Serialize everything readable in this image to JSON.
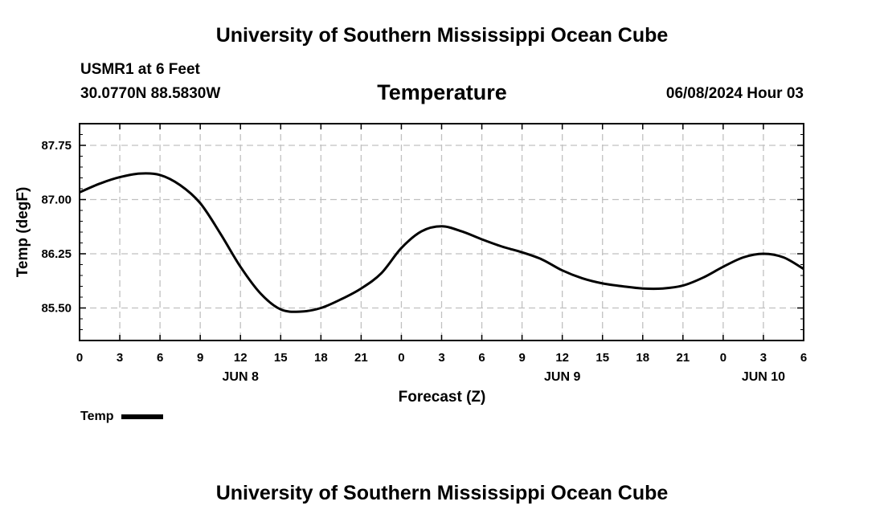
{
  "header": {
    "title": "University of Southern Mississippi Ocean Cube",
    "station": "USMR1 at 6 Feet",
    "coords": "30.0770N  88.5830W",
    "timestamp": "06/08/2024 Hour 03"
  },
  "footer": {
    "title": "University of Southern Mississippi Ocean Cube"
  },
  "chart_data": {
    "type": "line",
    "title": "Temperature",
    "xlabel": "Forecast (Z)",
    "ylabel": "Temp (degF)",
    "x_unit": "hours since 00Z Jun 8",
    "xlim": [
      0,
      54
    ],
    "ylim": [
      85.05,
      88.05
    ],
    "x_ticks": [
      0,
      3,
      6,
      9,
      12,
      15,
      18,
      21,
      24,
      27,
      30,
      33,
      36,
      39,
      42,
      45,
      48,
      51,
      54
    ],
    "x_tick_labels": [
      "0",
      "3",
      "6",
      "9",
      "12",
      "15",
      "18",
      "21",
      "0",
      "3",
      "6",
      "9",
      "12",
      "15",
      "18",
      "21",
      "0",
      "3",
      "6"
    ],
    "date_labels": [
      {
        "x": 12,
        "text": "JUN 8"
      },
      {
        "x": 36,
        "text": "JUN 9"
      },
      {
        "x": 51,
        "text": "JUN 10"
      }
    ],
    "y_ticks": [
      85.5,
      86.25,
      87.0,
      87.75
    ],
    "y_tick_labels": [
      "85.50",
      "86.25",
      "87.00",
      "87.75"
    ],
    "grid": true,
    "legend": "bottom-left",
    "color": "#000000",
    "series": [
      {
        "name": "Temp",
        "x": [
          0,
          1.5,
          3,
          4.5,
          6,
          7.5,
          9,
          10.5,
          12,
          13.5,
          15,
          16.5,
          18,
          19.5,
          21,
          22.5,
          24,
          25.5,
          27,
          28.5,
          30,
          31.5,
          33,
          34.5,
          36,
          37.5,
          39,
          40.5,
          42,
          43.5,
          45,
          46.5,
          48,
          49.5,
          51,
          52.5,
          54
        ],
        "y": [
          87.1,
          87.22,
          87.31,
          87.36,
          87.34,
          87.2,
          86.95,
          86.53,
          86.07,
          85.7,
          85.48,
          85.45,
          85.5,
          85.62,
          85.77,
          85.98,
          86.33,
          86.56,
          86.63,
          86.56,
          86.45,
          86.35,
          86.27,
          86.17,
          86.02,
          85.91,
          85.84,
          85.8,
          85.77,
          85.77,
          85.81,
          85.92,
          86.07,
          86.2,
          86.25,
          86.2,
          86.04
        ]
      }
    ]
  }
}
